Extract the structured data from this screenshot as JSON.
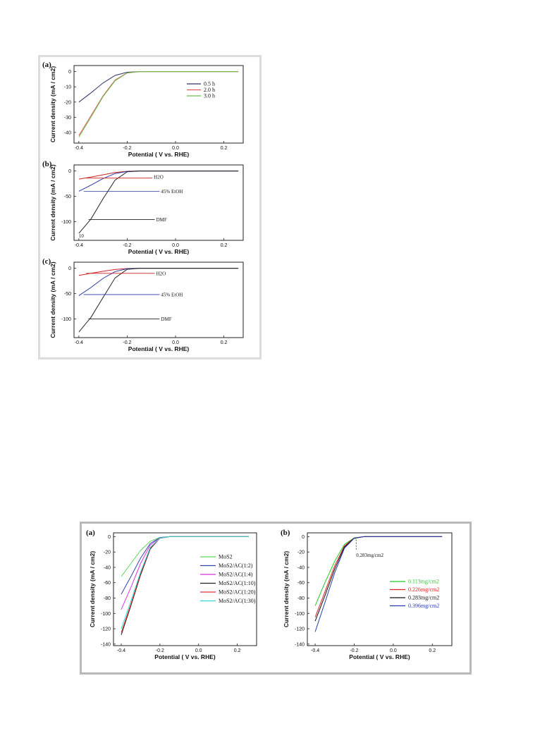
{
  "figures": [
    {
      "panels": [
        {
          "panel_label": "(a)",
          "legend": true,
          "chart_data": {
            "type": "line",
            "xlabel": "Potential ( V vs. RHE)",
            "ylabel": "Current density (mA / cm2)",
            "xlim": [
              -0.42,
              0.28
            ],
            "ylim": [
              -47,
              4
            ],
            "x_ticks": [
              -0.4,
              -0.2,
              0.0,
              0.2
            ],
            "y_ticks": [
              0,
              -10,
              -20,
              -30,
              -40
            ],
            "x_tick_labels": [
              "-0.4",
              "-0.2",
              "0.0",
              "0.2"
            ],
            "y_tick_labels": [
              "0",
              "-10",
              "-20",
              "-30",
              "-40"
            ],
            "series": [
              {
                "name": "0.5 h",
                "color": "#333366",
                "x": [
                  -0.4,
                  -0.35,
                  -0.3,
                  -0.25,
                  -0.2,
                  -0.15,
                  0.0,
                  0.26
                ],
                "y": [
                  -20,
                  -14,
                  -7.5,
                  -2.5,
                  -0.4,
                  0,
                  0,
                  0
                ]
              },
              {
                "name": "2.0 h",
                "color": "#e05a5a",
                "x": [
                  -0.4,
                  -0.35,
                  -0.3,
                  -0.25,
                  -0.2,
                  -0.15,
                  0.0,
                  0.26
                ],
                "y": [
                  -42,
                  -29,
                  -16,
                  -5.5,
                  -0.8,
                  0,
                  0,
                  0
                ]
              },
              {
                "name": "3.0 h",
                "color": "#6bbf4b",
                "x": [
                  -0.4,
                  -0.35,
                  -0.3,
                  -0.25,
                  -0.2,
                  -0.15,
                  0.0,
                  0.26
                ],
                "y": [
                  -43,
                  -30,
                  -16.5,
                  -6,
                  -0.9,
                  0,
                  0,
                  0
                ]
              }
            ]
          }
        },
        {
          "panel_label": "(b)",
          "legend": false,
          "chart_data": {
            "type": "line",
            "xlabel": "Potential ( V vs. RHE)",
            "ylabel": "Current density (mA / cm2)",
            "xlim": [
              -0.42,
              0.28
            ],
            "ylim": [
              -137,
              12
            ],
            "x_ticks": [
              -0.4,
              -0.2,
              0.0,
              0.2
            ],
            "y_ticks": [
              0,
              -50,
              -100
            ],
            "x_tick_labels": [
              "-0.4",
              "-0.2",
              "0.0",
              "0.2"
            ],
            "y_tick_labels": [
              "0",
              "-50",
              "-100"
            ],
            "series": [
              {
                "label": "H2O",
                "color": "#cc2222",
                "x": [
                  -0.4,
                  -0.35,
                  -0.3,
                  -0.25,
                  -0.2,
                  -0.15,
                  0.0,
                  0.26
                ],
                "y": [
                  -16,
                  -12,
                  -7.5,
                  -3,
                  -0.5,
                  0,
                  0,
                  0
                ]
              },
              {
                "label": "45% EtOH",
                "color": "#2a3aa8",
                "x": [
                  -0.4,
                  -0.35,
                  -0.3,
                  -0.25,
                  -0.2,
                  -0.15,
                  0.0,
                  0.26
                ],
                "y": [
                  -40,
                  -28,
                  -15,
                  -5,
                  -0.8,
                  0,
                  0,
                  0
                ]
              },
              {
                "label": "DMF",
                "color": "#222222",
                "x": [
                  -0.4,
                  -0.35,
                  -0.3,
                  -0.25,
                  -0.2,
                  -0.15,
                  0.0,
                  0.26
                ],
                "y": [
                  -123,
                  -95,
                  -55,
                  -18,
                  -1.5,
                  0,
                  0,
                  0
                ]
              }
            ],
            "annotations": [
              {
                "text": "H2O",
                "text_x": -0.09,
                "text_y": -12,
                "arrow_to_x": -0.37,
                "arrow_to_y": -14
              },
              {
                "text": "45% EtOH",
                "text_x": -0.06,
                "text_y": -40,
                "arrow_to_x": -0.38,
                "arrow_to_y": -40
              },
              {
                "text": "DMF",
                "text_x": -0.08,
                "text_y": -96,
                "arrow_to_x": -0.36,
                "arrow_to_y": -96
              },
              {
                "text": "10",
                "text_x": -0.4,
                "text_y": -128
              }
            ]
          }
        },
        {
          "panel_label": "(c)",
          "legend": false,
          "chart_data": {
            "type": "line",
            "xlabel": "Potential ( V vs. RHE)",
            "ylabel": "Current density (mA / cm2)",
            "xlim": [
              -0.42,
              0.28
            ],
            "ylim": [
              -137,
              12
            ],
            "x_ticks": [
              -0.4,
              -0.2,
              0.0,
              0.2
            ],
            "y_ticks": [
              0,
              -50,
              -100
            ],
            "x_tick_labels": [
              "-0.4",
              "-0.2",
              "0.0",
              "0.2"
            ],
            "y_tick_labels": [
              "0",
              "-50",
              "-100"
            ],
            "series": [
              {
                "label": "H2O",
                "color": "#cc2222",
                "x": [
                  -0.4,
                  -0.35,
                  -0.3,
                  -0.25,
                  -0.2,
                  -0.15,
                  0.0,
                  0.26
                ],
                "y": [
                  -14,
                  -10,
                  -6,
                  -2.5,
                  -0.5,
                  0,
                  0,
                  0
                ]
              },
              {
                "label": "45% EtOH",
                "color": "#2a3aa8",
                "x": [
                  -0.4,
                  -0.35,
                  -0.3,
                  -0.25,
                  -0.2,
                  -0.15,
                  0.0,
                  0.26
                ],
                "y": [
                  -54,
                  -38,
                  -20,
                  -6.5,
                  -1,
                  0,
                  0,
                  0
                ]
              },
              {
                "label": "DMF",
                "color": "#222222",
                "x": [
                  -0.4,
                  -0.35,
                  -0.3,
                  -0.25,
                  -0.2,
                  -0.15,
                  0.0,
                  0.26
                ],
                "y": [
                  -126,
                  -97,
                  -58,
                  -19,
                  -2,
                  0,
                  0,
                  0
                ]
              }
            ],
            "annotations": [
              {
                "text": "H2O",
                "text_x": -0.08,
                "text_y": -10,
                "arrow_to_x": -0.37,
                "arrow_to_y": -10
              },
              {
                "text": "45% EtOH",
                "text_x": -0.06,
                "text_y": -52,
                "arrow_to_x": -0.38,
                "arrow_to_y": -52
              },
              {
                "text": "DMF",
                "text_x": -0.06,
                "text_y": -100,
                "arrow_to_x": -0.36,
                "arrow_to_y": -100
              }
            ]
          }
        }
      ]
    },
    {
      "panels": [
        {
          "panel_label": "(a)",
          "legend": true,
          "chart_data": {
            "type": "line",
            "xlabel": "Potential ( V vs. RHE)",
            "ylabel": "Current density (mA / cm2)",
            "xlim": [
              -0.44,
              0.3
            ],
            "ylim": [
              -142,
              5
            ],
            "x_ticks": [
              -0.4,
              -0.2,
              0.0,
              0.2
            ],
            "y_ticks": [
              0,
              -20,
              -40,
              -60,
              -80,
              -100,
              -120,
              -140
            ],
            "x_tick_labels": [
              "-0.4",
              "-0.2",
              "0.0",
              "0.2"
            ],
            "y_tick_labels": [
              "0",
              "-20",
              "-40",
              "-60",
              "-80",
              "-100",
              "-120",
              "-140"
            ],
            "series": [
              {
                "name": "MoS2",
                "color": "#5ad85a",
                "x": [
                  -0.4,
                  -0.35,
                  -0.3,
                  -0.25,
                  -0.2,
                  -0.15,
                  0.0,
                  0.26
                ],
                "y": [
                  -52,
                  -35,
                  -18,
                  -6,
                  -1,
                  0,
                  0,
                  0
                ]
              },
              {
                "name": "MoS2/AC(1:2)",
                "color": "#3344aa",
                "x": [
                  -0.4,
                  -0.35,
                  -0.3,
                  -0.25,
                  -0.2,
                  -0.15,
                  0.0,
                  0.26
                ],
                "y": [
                  -75,
                  -52,
                  -28,
                  -9,
                  -1.2,
                  0,
                  0,
                  0
                ]
              },
              {
                "name": "MoS2/AC(1:4)",
                "color": "#dd33dd",
                "x": [
                  -0.4,
                  -0.35,
                  -0.3,
                  -0.25,
                  -0.2,
                  -0.15,
                  0.0,
                  0.26
                ],
                "y": [
                  -95,
                  -66,
                  -35,
                  -11,
                  -1.5,
                  0,
                  0,
                  0
                ]
              },
              {
                "name": "MoS2/AC(1:10)",
                "color": "#222222",
                "x": [
                  -0.4,
                  -0.35,
                  -0.3,
                  -0.25,
                  -0.2,
                  -0.15,
                  0.0,
                  0.26
                ],
                "y": [
                  -128,
                  -90,
                  -50,
                  -16,
                  -2,
                  0,
                  0,
                  0
                ]
              },
              {
                "name": "MoS2/AC(1:20)",
                "color": "#e03030",
                "x": [
                  -0.4,
                  -0.35,
                  -0.3,
                  -0.25,
                  -0.2,
                  -0.15,
                  0.0,
                  0.26
                ],
                "y": [
                  -125,
                  -88,
                  -48,
                  -15,
                  -2,
                  0,
                  0,
                  0
                ]
              },
              {
                "name": "MoS2/AC(1:30)",
                "color": "#33dddd",
                "x": [
                  -0.4,
                  -0.35,
                  -0.3,
                  -0.25,
                  -0.2,
                  -0.15,
                  0.0,
                  0.26
                ],
                "y": [
                  -120,
                  -84,
                  -46,
                  -14,
                  -1.8,
                  0,
                  0,
                  0
                ]
              }
            ]
          }
        },
        {
          "panel_label": "(b)",
          "legend": true,
          "chart_data": {
            "type": "line",
            "xlabel": "Potential ( V vs. RHE)",
            "ylabel": "Current density (mA / cm2)",
            "xlim": [
              -0.44,
              0.3
            ],
            "ylim": [
              -142,
              5
            ],
            "x_ticks": [
              -0.4,
              -0.2,
              0.0,
              0.2
            ],
            "y_ticks": [
              0,
              -20,
              -40,
              -60,
              -80,
              -100,
              -120,
              -140
            ],
            "x_tick_labels": [
              "-0.4",
              "-0.2",
              "0.0",
              "0.2"
            ],
            "y_tick_labels": [
              "0",
              "-20",
              "-40",
              "-60",
              "-80",
              "-100",
              "-120",
              "-140"
            ],
            "series": [
              {
                "name": "0.113mg/cm2",
                "color": "#22cc22",
                "x": [
                  -0.4,
                  -0.35,
                  -0.3,
                  -0.25,
                  -0.2,
                  -0.15,
                  0.0,
                  0.25
                ],
                "y": [
                  -90,
                  -60,
                  -32,
                  -10,
                  -1.5,
                  0,
                  0,
                  0
                ]
              },
              {
                "name": "0.226mg/cm2",
                "color": "#e02020",
                "x": [
                  -0.4,
                  -0.35,
                  -0.3,
                  -0.25,
                  -0.2,
                  -0.15,
                  0.0,
                  0.25
                ],
                "y": [
                  -105,
                  -72,
                  -38,
                  -12,
                  -1.8,
                  0,
                  0,
                  0
                ]
              },
              {
                "name": "0.283mg/cm2",
                "color": "#111111",
                "x": [
                  -0.4,
                  -0.35,
                  -0.3,
                  -0.25,
                  -0.2,
                  -0.15,
                  0.0,
                  0.25
                ],
                "y": [
                  -110,
                  -77,
                  -42,
                  -13.5,
                  -2,
                  0,
                  0,
                  0
                ]
              },
              {
                "name": "0.396mg/cm2",
                "color": "#2a3ab0",
                "x": [
                  -0.4,
                  -0.35,
                  -0.3,
                  -0.25,
                  -0.2,
                  -0.15,
                  0.0,
                  0.25
                ],
                "y": [
                  -124,
                  -86,
                  -47,
                  -15,
                  -2,
                  0,
                  0,
                  0
                ]
              }
            ],
            "annotations": [
              {
                "text": "0.283mg/cm2",
                "text_x": -0.19,
                "text_y": -24,
                "arrow_to_x": -0.19,
                "arrow_to_y": -3,
                "dashed": true
              }
            ]
          }
        }
      ]
    }
  ]
}
